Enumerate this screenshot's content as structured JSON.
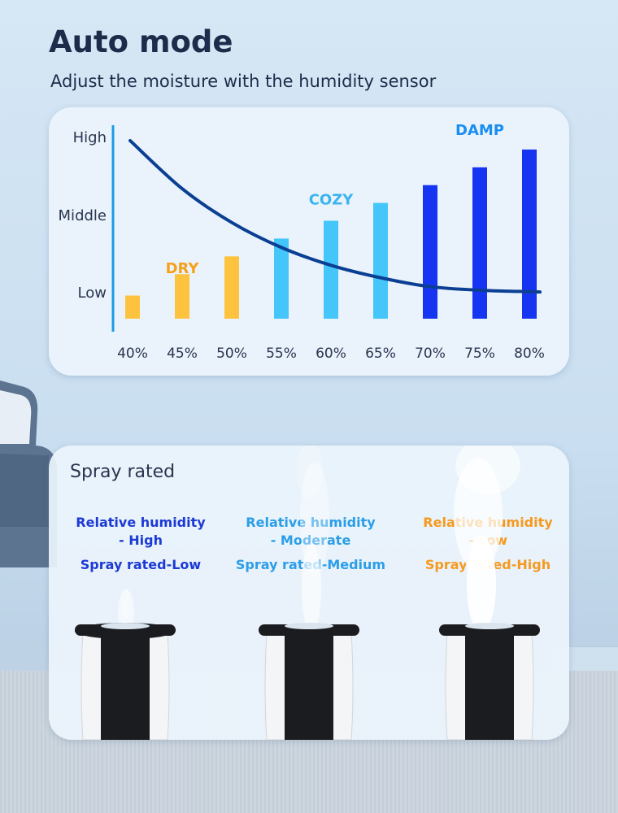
{
  "header": {
    "title": "Auto mode",
    "subtitle": "Adjust the moisture with the humidity sensor"
  },
  "chart_data": {
    "type": "bar",
    "categories": [
      "40%",
      "45%",
      "50%",
      "55%",
      "60%",
      "65%",
      "70%",
      "75%",
      "80%"
    ],
    "values": [
      1.3,
      2.5,
      3.5,
      4.5,
      5.5,
      6.5,
      7.5,
      8.5,
      9.5
    ],
    "y_tick_labels": [
      "Low",
      "Middle",
      "High"
    ],
    "bar_colors": [
      "#fec33e",
      "#fec33e",
      "#fec33e",
      "#44c6fb",
      "#44c6fb",
      "#44c6fb",
      "#1535f2",
      "#1535f2",
      "#1535f2"
    ],
    "curve": {
      "x": [
        40,
        45,
        50,
        55,
        60,
        65,
        70,
        75,
        80
      ],
      "y": [
        10.0,
        7.3,
        5.4,
        4.0,
        3.0,
        2.3,
        1.8,
        1.6,
        1.5
      ],
      "color": "#0b3f93"
    },
    "annotations": [
      {
        "text": "DRY",
        "x": "45%",
        "color": "#f5a11c"
      },
      {
        "text": "COZY",
        "x": "60%",
        "color": "#39b4f0"
      },
      {
        "text": "DAMP",
        "x": "75%",
        "color": "#1a8ef0"
      }
    ],
    "ylim": [
      0,
      10.5
    ],
    "grid": false,
    "legend": "none"
  },
  "spray_section": {
    "title": "Spray rated",
    "columns": [
      {
        "humidity_label": "Relative humidity",
        "humidity_level": "- High",
        "spray_label": "Spray rated-Low",
        "color": "#1c3ad6",
        "mist_level": 0.2
      },
      {
        "humidity_label": "Relative humidity",
        "humidity_level": "- Moderate",
        "spray_label": "Spray rated-Medium",
        "color": "#2b9ee8",
        "mist_level": 0.5
      },
      {
        "humidity_label": "Relative humidity",
        "humidity_level": "- Low",
        "spray_label": "Spray rated-High",
        "color": "#f59a1f",
        "mist_level": 1.0
      }
    ]
  }
}
